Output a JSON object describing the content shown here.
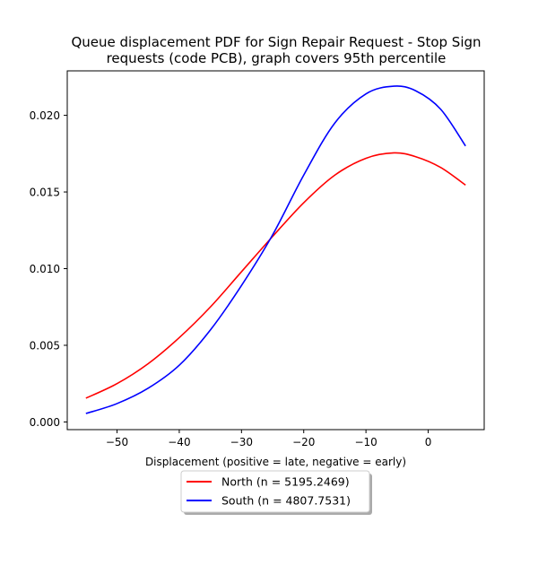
{
  "chart_data": {
    "type": "line",
    "title_lines": [
      "Queue displacement PDF for Sign Repair Request - Stop Sign",
      "requests (code PCB), graph covers 95th percentile"
    ],
    "xlabel": "Displacement (positive = late, negative = early)",
    "ylabel": "",
    "xlim": [
      -58,
      9
    ],
    "ylim": [
      -0.0005,
      0.0229
    ],
    "x_ticks": [
      -50,
      -40,
      -30,
      -20,
      -10,
      0
    ],
    "x_tick_labels": [
      "−50",
      "−40",
      "−30",
      "−20",
      "−10",
      "0"
    ],
    "y_ticks": [
      0.0,
      0.005,
      0.01,
      0.015,
      0.02
    ],
    "y_tick_labels": [
      "0.000",
      "0.005",
      "0.010",
      "0.015",
      "0.020"
    ],
    "grid": false,
    "legend_position": "bottom-center",
    "series": [
      {
        "name": "North (n = 5195.2469)",
        "color": "#ff0000",
        "x": [
          -55,
          -50,
          -45,
          -40,
          -35,
          -30,
          -25,
          -20,
          -15,
          -10,
          -5.5,
          -2,
          2,
          6
        ],
        "y": [
          0.00155,
          0.0025,
          0.0038,
          0.0055,
          0.0075,
          0.0098,
          0.0121,
          0.0143,
          0.0161,
          0.0172,
          0.01755,
          0.0173,
          0.0166,
          0.01545
        ]
      },
      {
        "name": "South (n = 4807.7531)",
        "color": "#0000ff",
        "x": [
          -55,
          -50,
          -45,
          -40,
          -35,
          -30,
          -25,
          -20,
          -15,
          -10,
          -5.5,
          -2,
          2,
          6
        ],
        "y": [
          0.00055,
          0.0012,
          0.0022,
          0.0037,
          0.006,
          0.0089,
          0.0122,
          0.0161,
          0.0195,
          0.0214,
          0.0219,
          0.0216,
          0.0204,
          0.018
        ]
      }
    ]
  }
}
